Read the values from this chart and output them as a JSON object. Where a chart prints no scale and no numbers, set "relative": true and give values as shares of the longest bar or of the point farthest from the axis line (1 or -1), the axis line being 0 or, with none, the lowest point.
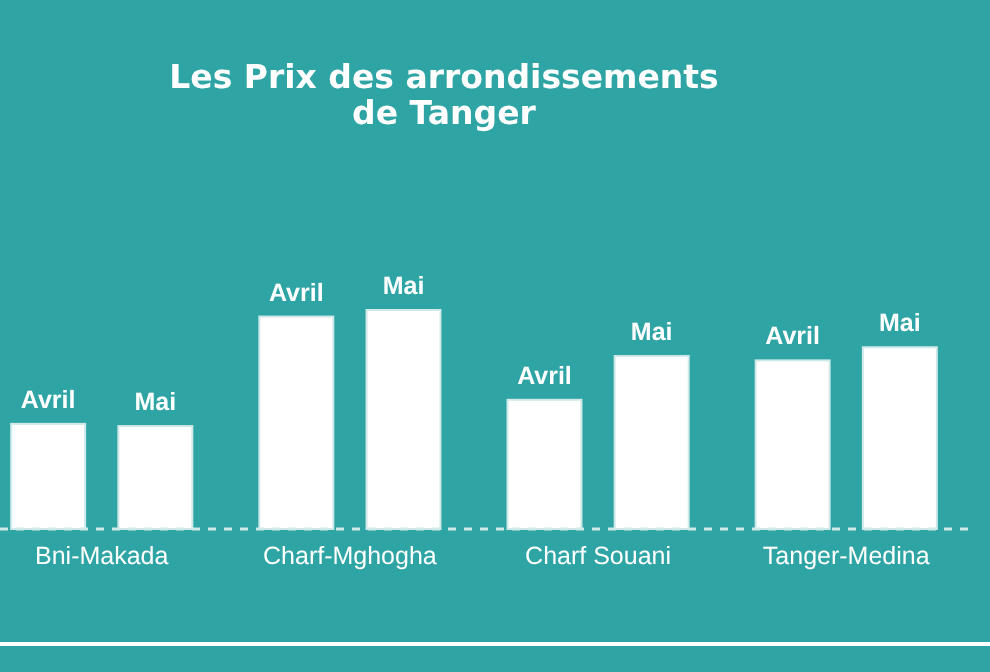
{
  "chart_data": {
    "type": "bar",
    "title": "Les Prix des arrondissements\nde Tanger",
    "relative": true,
    "categories": [
      "Bni-Makada",
      "Charf-Mghogha",
      "Charf Souani",
      "Tanger-Medina"
    ],
    "series": [
      {
        "name": "Avril",
        "color": "#ffffff",
        "values": [
          0.48,
          0.97,
          0.59,
          0.77
        ]
      },
      {
        "name": "Mai",
        "color": "#ffffff",
        "values": [
          0.47,
          1,
          0.79,
          0.83
        ]
      }
    ]
  }
}
